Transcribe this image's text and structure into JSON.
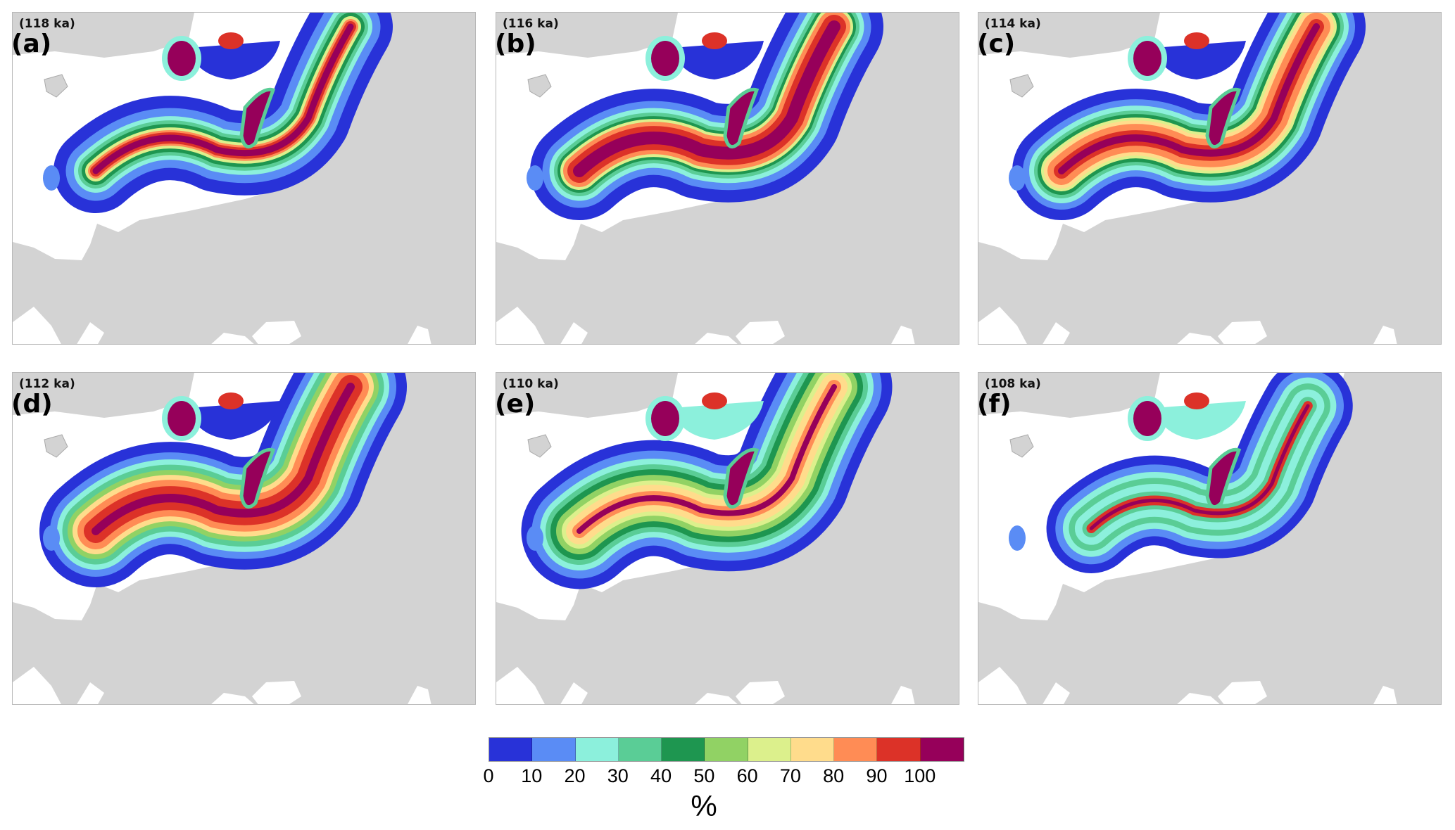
{
  "panels": [
    {
      "time_label": "(118 ka)",
      "letter": "(a)"
    },
    {
      "time_label": "(116 ka)",
      "letter": "(b)"
    },
    {
      "time_label": "(114 ka)",
      "letter": "(c)"
    },
    {
      "time_label": "(112 ka)",
      "letter": "(d)"
    },
    {
      "time_label": "(110 ka)",
      "letter": "(e)"
    },
    {
      "time_label": "(108 ka)",
      "letter": "(f)"
    }
  ],
  "colorbar": {
    "ticks": [
      "0",
      "10",
      "20",
      "30",
      "40",
      "50",
      "60",
      "70",
      "80",
      "90",
      "100"
    ],
    "unit": "%",
    "colors": [
      "#2832d8",
      "#5a8cf5",
      "#8cf0dc",
      "#5acd96",
      "#1e9650",
      "#91d264",
      "#dcf08c",
      "#ffdc8c",
      "#ff8c55",
      "#dc3228",
      "#96005a"
    ]
  }
}
